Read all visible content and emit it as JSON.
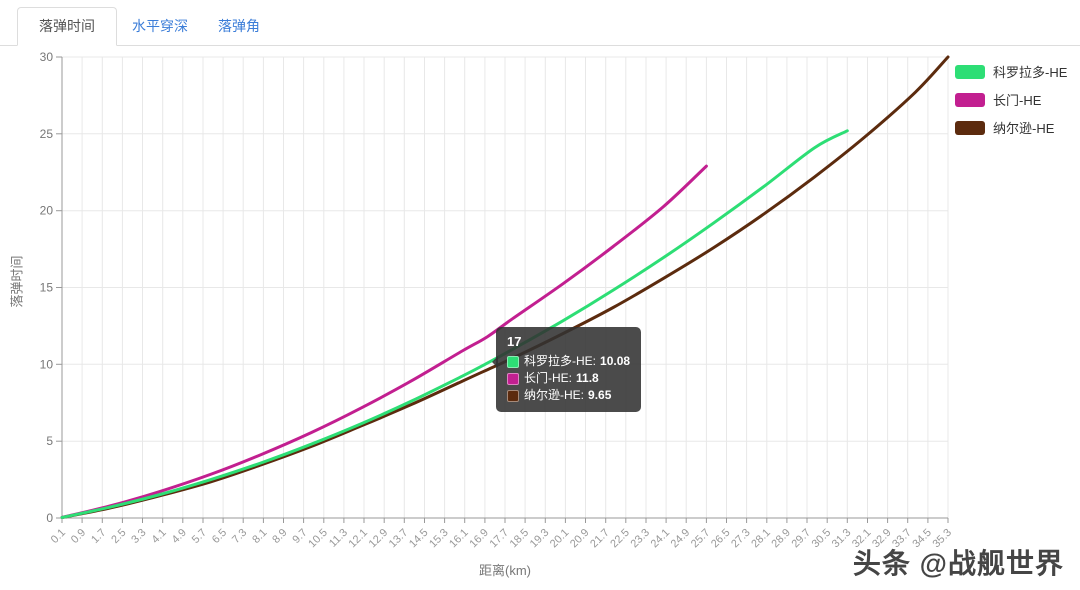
{
  "tabs": [
    {
      "label": "落弹时间",
      "active": true
    },
    {
      "label": "水平穿深",
      "active": false
    },
    {
      "label": "落弹角",
      "active": false
    }
  ],
  "colors": {
    "tab_link": "#3b7dd8",
    "grid_line": "#e8e8e8",
    "axis_line": "#999999",
    "x_tick_label": "#999999",
    "y_tick_label": "#777777"
  },
  "chart_data": {
    "type": "line",
    "title": "",
    "xlabel": "距离(km)",
    "ylabel": "落弹时间",
    "ylim": [
      0,
      30
    ],
    "y_ticks": [
      0,
      5,
      10,
      15,
      20,
      25,
      30
    ],
    "grid": true,
    "legend_position": "top-right",
    "x_tick_labels": [
      "0.1",
      "0.9",
      "1.7",
      "2.5",
      "3.3",
      "4.1",
      "4.9",
      "5.7",
      "6.5",
      "7.3",
      "8.1",
      "8.9",
      "9.7",
      "10.5",
      "11.3",
      "12.1",
      "12.9",
      "13.7",
      "14.5",
      "15.3",
      "16.1",
      "16.9",
      "17.7",
      "18.5",
      "19.3",
      "20.1",
      "20.9",
      "21.7",
      "22.5",
      "23.3",
      "24.1",
      "24.9",
      "25.7",
      "26.5",
      "27.3",
      "28.1",
      "28.9",
      "29.7",
      "30.5",
      "31.3",
      "32.1",
      "32.9",
      "33.7",
      "34.5",
      "35.3"
    ],
    "series": [
      {
        "name": "科罗拉多-HE",
        "color": "#2dde75",
        "points": [
          [
            0.1,
            0.03
          ],
          [
            2,
            0.7
          ],
          [
            4,
            1.53
          ],
          [
            6,
            2.49
          ],
          [
            8,
            3.58
          ],
          [
            10,
            4.8
          ],
          [
            12,
            6.14
          ],
          [
            14,
            7.62
          ],
          [
            16,
            9.23
          ],
          [
            17,
            10.08
          ],
          [
            18,
            10.97
          ],
          [
            20,
            12.83
          ],
          [
            22,
            14.83
          ],
          [
            24,
            16.95
          ],
          [
            26,
            19.21
          ],
          [
            28,
            21.59
          ],
          [
            30,
            24.1
          ],
          [
            31.3,
            25.2
          ]
        ]
      },
      {
        "name": "长门-HE",
        "color": "#c21f90",
        "points": [
          [
            0.1,
            0.04
          ],
          [
            2,
            0.78
          ],
          [
            4,
            1.73
          ],
          [
            6,
            2.84
          ],
          [
            8,
            4.12
          ],
          [
            10,
            5.56
          ],
          [
            12,
            7.17
          ],
          [
            14,
            8.94
          ],
          [
            16,
            10.87
          ],
          [
            17,
            11.8
          ],
          [
            18,
            12.97
          ],
          [
            20,
            15.24
          ],
          [
            22,
            17.67
          ],
          [
            24,
            20.27
          ],
          [
            25.7,
            22.9
          ]
        ]
      },
      {
        "name": "纳尔逊-HE",
        "color": "#5c2b0e",
        "points": [
          [
            0.1,
            0.03
          ],
          [
            2,
            0.65
          ],
          [
            4,
            1.45
          ],
          [
            6,
            2.35
          ],
          [
            8,
            3.45
          ],
          [
            10,
            4.65
          ],
          [
            12,
            6.0
          ],
          [
            14,
            7.4
          ],
          [
            16,
            8.9
          ],
          [
            17,
            9.65
          ],
          [
            18,
            10.4
          ],
          [
            20,
            12.0
          ],
          [
            22,
            13.7
          ],
          [
            24,
            15.6
          ],
          [
            26,
            17.6
          ],
          [
            28,
            19.8
          ],
          [
            30,
            22.2
          ],
          [
            32,
            24.8
          ],
          [
            34,
            27.7
          ],
          [
            35.3,
            30.0
          ]
        ]
      }
    ]
  },
  "tooltip": {
    "header": "17",
    "separator": ": ",
    "rows": [
      {
        "label": "科罗拉多-HE",
        "value": "10.08"
      },
      {
        "label": "长门-HE",
        "value": "11.8"
      },
      {
        "label": "纳尔逊-HE",
        "value": "9.65"
      }
    ]
  },
  "watermark": "头条 @战舰世界"
}
